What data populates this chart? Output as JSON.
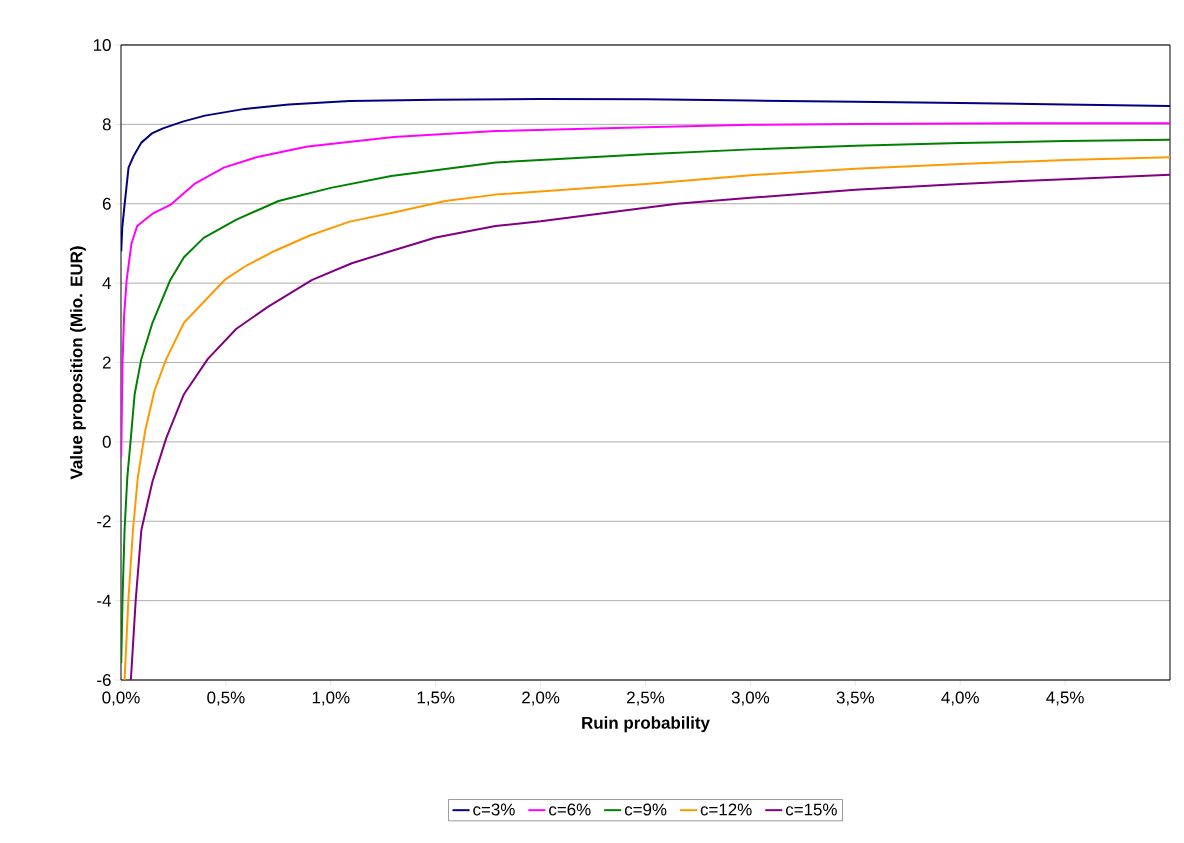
{
  "chart_data": {
    "type": "line",
    "xlabel": "Ruin probability",
    "ylabel": "Value proposition (Mio. EUR)",
    "xlim": [
      0,
      5
    ],
    "ylim": [
      -6,
      10
    ],
    "xticks": [
      {
        "value": 0,
        "label": "0,0%"
      },
      {
        "value": 0.5,
        "label": "0,5%"
      },
      {
        "value": 1,
        "label": "1,0%"
      },
      {
        "value": 1.5,
        "label": "1,5%"
      },
      {
        "value": 2,
        "label": "2,0%"
      },
      {
        "value": 2.5,
        "label": "2,5%"
      },
      {
        "value": 3,
        "label": "3,0%"
      },
      {
        "value": 3.5,
        "label": "3,5%"
      },
      {
        "value": 4,
        "label": "4,0%"
      },
      {
        "value": 4.5,
        "label": "4,5%"
      },
      {
        "value": 5,
        "label": null
      }
    ],
    "yticks": [
      -6,
      -4,
      -2,
      0,
      2,
      4,
      6,
      8,
      10
    ],
    "grid": "y",
    "legend": "bottom",
    "marker": "none",
    "line_style": "solid",
    "series": [
      {
        "name": "c=3%",
        "color": "#000080",
        "x": [
          0.001,
          0.006,
          0.017,
          0.036,
          0.06,
          0.097,
          0.15,
          0.2,
          0.294,
          0.4,
          0.59,
          0.8,
          1.09,
          1.5,
          2.0,
          2.5,
          3.0,
          3.5,
          4.0,
          4.5,
          5.0
        ],
        "values": [
          4.8,
          5.4,
          5.97,
          6.91,
          7.2,
          7.54,
          7.78,
          7.9,
          8.07,
          8.22,
          8.39,
          8.5,
          8.59,
          8.62,
          8.64,
          8.63,
          8.6,
          8.57,
          8.54,
          8.5,
          8.46
        ]
      },
      {
        "name": "c=6%",
        "color": "#ff00ff",
        "x": [
          0.001,
          0.007,
          0.015,
          0.027,
          0.05,
          0.077,
          0.15,
          0.235,
          0.35,
          0.49,
          0.65,
          0.89,
          1.3,
          1.785,
          2.5,
          3.0,
          3.5,
          4.0,
          4.5,
          5.0
        ],
        "values": [
          -0.38,
          1.99,
          3.2,
          4.08,
          5.0,
          5.44,
          5.75,
          5.97,
          6.5,
          6.91,
          7.18,
          7.44,
          7.68,
          7.83,
          7.93,
          7.99,
          8.01,
          8.02,
          8.03,
          8.03
        ]
      },
      {
        "name": "c=9%",
        "color": "#008000",
        "x": [
          0.001,
          0.007,
          0.017,
          0.03,
          0.047,
          0.065,
          0.097,
          0.15,
          0.235,
          0.3,
          0.394,
          0.55,
          0.751,
          1.0,
          1.288,
          1.785,
          2.5,
          3.0,
          3.5,
          4.0,
          4.5,
          5.0
        ],
        "values": [
          -5.57,
          -4.0,
          -2.22,
          -0.9,
          0.1,
          1.2,
          2.09,
          3.0,
          4.08,
          4.65,
          5.14,
          5.6,
          6.07,
          6.4,
          6.7,
          7.04,
          7.25,
          7.37,
          7.46,
          7.53,
          7.58,
          7.61
        ]
      },
      {
        "name": "c=12%",
        "color": "#ff9900",
        "x": [
          0.017,
          0.035,
          0.057,
          0.08,
          0.116,
          0.16,
          0.216,
          0.3,
          0.494,
          0.6,
          0.732,
          0.9,
          1.09,
          1.3,
          1.546,
          1.785,
          2.5,
          3.0,
          3.5,
          4.0,
          4.5,
          5.0
        ],
        "values": [
          -6,
          -4.0,
          -2.22,
          -0.9,
          0.3,
          1.3,
          2.09,
          3.0,
          4.08,
          4.45,
          4.81,
          5.2,
          5.55,
          5.78,
          6.07,
          6.23,
          6.5,
          6.72,
          6.88,
          7.0,
          7.1,
          7.17
        ]
      },
      {
        "name": "c=15%",
        "color": "#800080",
        "x": [
          0.047,
          0.07,
          0.097,
          0.15,
          0.216,
          0.3,
          0.414,
          0.55,
          0.7,
          0.911,
          1.1,
          1.288,
          1.5,
          1.785,
          2.0,
          2.65,
          3.0,
          3.5,
          4.0,
          4.5,
          5.0
        ],
        "values": [
          -6,
          -4.0,
          -2.22,
          -1.0,
          0.1,
          1.2,
          2.09,
          2.85,
          3.4,
          4.08,
          4.5,
          4.81,
          5.15,
          5.44,
          5.56,
          6.0,
          6.15,
          6.35,
          6.5,
          6.62,
          6.73
        ]
      }
    ]
  }
}
